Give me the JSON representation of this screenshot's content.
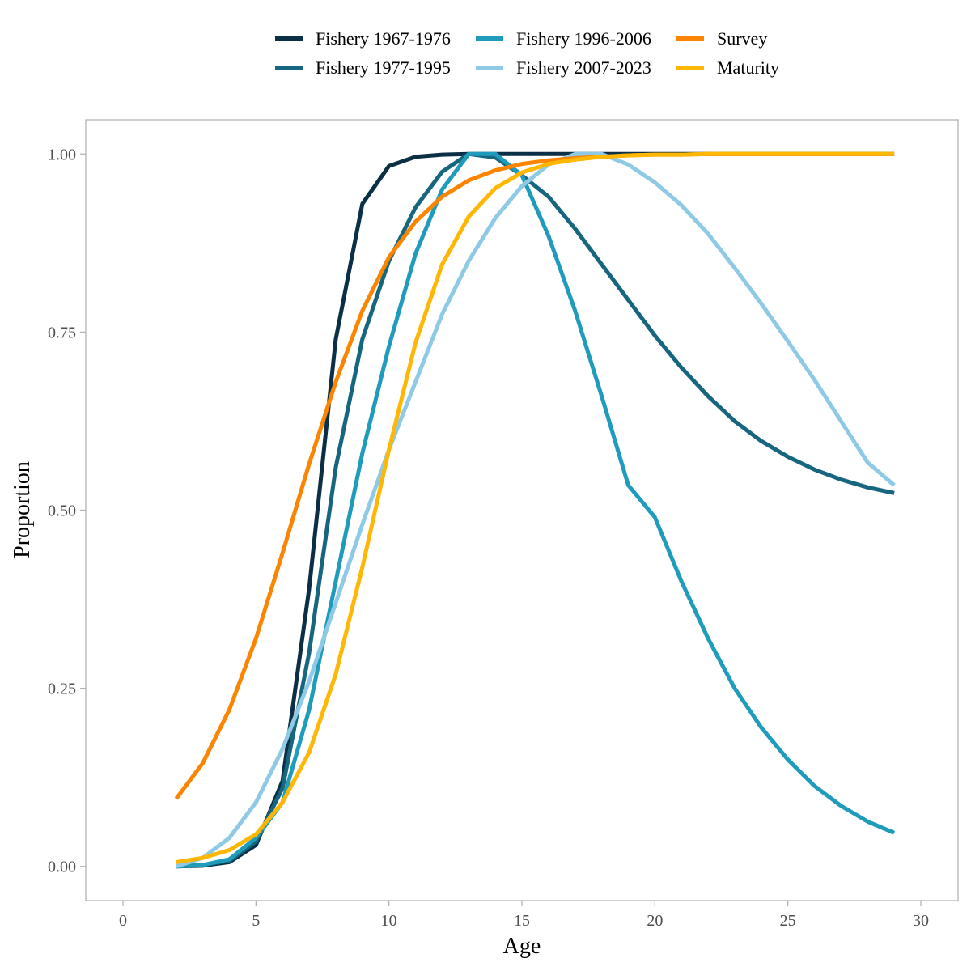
{
  "chart_data": {
    "type": "line",
    "xlabel": "Age",
    "ylabel": "Proportion",
    "xlim": [
      -1.4,
      31.4
    ],
    "ylim": [
      -0.048,
      1.048
    ],
    "xticks": [
      0,
      5,
      10,
      15,
      20,
      25,
      30
    ],
    "yticks": [
      0.0,
      0.25,
      0.5,
      0.75,
      1.0
    ],
    "ytick_labels": [
      "0.00",
      "0.25",
      "0.50",
      "0.75",
      "1.00"
    ],
    "grid": false,
    "legend_position": "top",
    "x": [
      2,
      3,
      4,
      5,
      6,
      7,
      8,
      9,
      10,
      11,
      12,
      13,
      14,
      15,
      16,
      17,
      18,
      19,
      20,
      21,
      22,
      23,
      24,
      25,
      26,
      27,
      28,
      29
    ],
    "series": [
      {
        "name": "Fishery 1967-1976",
        "color": "#0b2f45",
        "values": [
          0.0,
          0.001,
          0.006,
          0.03,
          0.12,
          0.39,
          0.74,
          0.93,
          0.983,
          0.996,
          0.999,
          1.0,
          1.0,
          1.0,
          1.0,
          1.0,
          1.0,
          1.0,
          1.0,
          1.0,
          1.0,
          1.0,
          1.0,
          1.0,
          1.0,
          1.0,
          1.0,
          1.0
        ]
      },
      {
        "name": "Fishery 1977-1995",
        "color": "#17667f",
        "values": [
          0.0,
          0.002,
          0.008,
          0.035,
          0.11,
          0.3,
          0.56,
          0.74,
          0.85,
          0.925,
          0.975,
          1.0,
          0.995,
          0.97,
          0.94,
          0.895,
          0.845,
          0.795,
          0.745,
          0.7,
          0.66,
          0.625,
          0.597,
          0.575,
          0.557,
          0.543,
          0.532,
          0.524
        ]
      },
      {
        "name": "Fishery 1996-2006",
        "color": "#1f9bbb",
        "values": [
          0.0,
          0.002,
          0.01,
          0.04,
          0.09,
          0.22,
          0.4,
          0.58,
          0.73,
          0.86,
          0.95,
          1.0,
          1.0,
          0.97,
          0.885,
          0.78,
          0.66,
          0.535,
          0.49,
          0.4,
          0.32,
          0.25,
          0.195,
          0.15,
          0.113,
          0.085,
          0.063,
          0.047
        ]
      },
      {
        "name": "Fishery 2007-2023",
        "color": "#8ecae6",
        "values": [
          0.0,
          0.012,
          0.04,
          0.09,
          0.165,
          0.26,
          0.37,
          0.48,
          0.585,
          0.68,
          0.775,
          0.85,
          0.91,
          0.955,
          0.985,
          1.0,
          1.0,
          0.985,
          0.96,
          0.928,
          0.888,
          0.84,
          0.79,
          0.737,
          0.683,
          0.625,
          0.567,
          0.535
        ]
      },
      {
        "name": "Survey",
        "color": "#fb8500",
        "values": [
          0.095,
          0.145,
          0.22,
          0.32,
          0.44,
          0.565,
          0.68,
          0.78,
          0.855,
          0.905,
          0.94,
          0.963,
          0.977,
          0.986,
          0.991,
          0.994,
          0.996,
          0.998,
          0.999,
          0.999,
          1.0,
          1.0,
          1.0,
          1.0,
          1.0,
          1.0,
          1.0,
          1.0
        ]
      },
      {
        "name": "Maturity",
        "color": "#ffb703",
        "values": [
          0.006,
          0.012,
          0.023,
          0.045,
          0.09,
          0.16,
          0.27,
          0.42,
          0.585,
          0.735,
          0.845,
          0.912,
          0.952,
          0.974,
          0.986,
          0.992,
          0.996,
          0.998,
          0.999,
          0.999,
          1.0,
          1.0,
          1.0,
          1.0,
          1.0,
          1.0,
          1.0,
          1.0
        ]
      }
    ]
  }
}
